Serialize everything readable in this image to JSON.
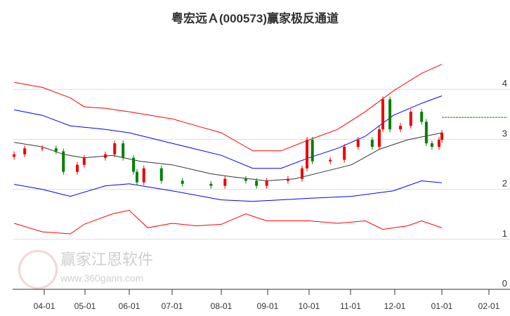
{
  "title": "粤宏远Ａ(000573)赢家极反通道",
  "watermark": {
    "name": "赢家江恩软件",
    "url": "www.360gann.com",
    "logo_text": "江恩赢家"
  },
  "colors": {
    "outer": "#ff0000",
    "inner": "#0000ff",
    "ma": "#333333",
    "up": "#ee0000",
    "down": "#008000",
    "target": "#008000"
  },
  "chart_data": {
    "type": "line",
    "title": "粤宏远Ａ(000573)赢家极反通道",
    "x_unit": "months since 04-01",
    "xticks": [
      "04-01",
      "05-01",
      "06-01",
      "07-01",
      "08-01",
      "09-01",
      "10-01",
      "11-01",
      "12-01",
      "01-01",
      "02-01"
    ],
    "yticks": [
      "0",
      "1",
      "2",
      "3",
      "4"
    ],
    "ylim": [
      0,
      4.6
    ],
    "grid": true,
    "series": [
      {
        "name": "upper-outer",
        "color": "outer",
        "points": [
          [
            -0.74,
            4.14
          ],
          [
            -0.05,
            4.04
          ],
          [
            0.64,
            3.83
          ],
          [
            0.98,
            3.65
          ],
          [
            1.46,
            3.62
          ],
          [
            2,
            3.55
          ],
          [
            3,
            3.41
          ],
          [
            3.5,
            3.27
          ],
          [
            4,
            3.13
          ],
          [
            4.68,
            2.77
          ],
          [
            5.32,
            2.77
          ],
          [
            6,
            2.99
          ],
          [
            6.69,
            3.2
          ],
          [
            7.33,
            3.55
          ],
          [
            7.97,
            3.97
          ],
          [
            8.57,
            4.32
          ],
          [
            9,
            4.5
          ]
        ]
      },
      {
        "name": "upper-inner",
        "color": "inner",
        "points": [
          [
            -0.74,
            3.59
          ],
          [
            -0.05,
            3.48
          ],
          [
            0.64,
            3.27
          ],
          [
            1.46,
            3.2
          ],
          [
            2,
            3.13
          ],
          [
            3,
            2.92
          ],
          [
            4,
            2.68
          ],
          [
            4.68,
            2.42
          ],
          [
            5.32,
            2.42
          ],
          [
            6,
            2.63
          ],
          [
            6.69,
            2.82
          ],
          [
            7.33,
            3.06
          ],
          [
            7.97,
            3.48
          ],
          [
            8.57,
            3.72
          ],
          [
            9,
            3.87
          ]
        ]
      },
      {
        "name": "lower-inner",
        "color": "inner",
        "points": [
          [
            -0.74,
            2.1
          ],
          [
            -0.05,
            2.0
          ],
          [
            0.64,
            1.86
          ],
          [
            1.46,
            2.07
          ],
          [
            2,
            2.11
          ],
          [
            3,
            1.97
          ],
          [
            4,
            1.79
          ],
          [
            4.68,
            1.76
          ],
          [
            5.32,
            1.79
          ],
          [
            6,
            1.82
          ],
          [
            7.02,
            1.86
          ],
          [
            7.97,
            1.97
          ],
          [
            8.57,
            2.17
          ],
          [
            9,
            2.13
          ]
        ]
      },
      {
        "name": "lower-outer",
        "color": "outer",
        "points": [
          [
            -0.74,
            1.32
          ],
          [
            -0.05,
            1.15
          ],
          [
            0.64,
            1.11
          ],
          [
            0.98,
            1.3
          ],
          [
            1.62,
            1.51
          ],
          [
            2,
            1.58
          ],
          [
            2.43,
            1.23
          ],
          [
            3,
            1.32
          ],
          [
            3.5,
            1.27
          ],
          [
            4,
            1.3
          ],
          [
            4.53,
            1.51
          ],
          [
            4.98,
            1.37
          ],
          [
            6,
            1.37
          ],
          [
            6.69,
            1.32
          ],
          [
            7.33,
            1.37
          ],
          [
            7.73,
            1.2
          ],
          [
            8.27,
            1.27
          ],
          [
            8.57,
            1.37
          ],
          [
            9,
            1.23
          ]
        ]
      },
      {
        "name": "moving-average",
        "color": "ma",
        "points": [
          [
            -0.74,
            2.94
          ],
          [
            -0.05,
            2.85
          ],
          [
            0.47,
            2.7
          ],
          [
            0.98,
            2.63
          ],
          [
            1.62,
            2.68
          ],
          [
            2.26,
            2.56
          ],
          [
            3,
            2.49
          ],
          [
            3.79,
            2.31
          ],
          [
            4.23,
            2.25
          ],
          [
            4.98,
            2.17
          ],
          [
            5.66,
            2.21
          ],
          [
            6.34,
            2.35
          ],
          [
            7.02,
            2.49
          ],
          [
            7.65,
            2.8
          ],
          [
            8.27,
            2.99
          ],
          [
            9,
            3.13
          ]
        ]
      }
    ],
    "candles_close": [
      [
        -0.74,
        2.7
      ],
      [
        -0.48,
        2.82
      ],
      [
        -0.05,
        2.82
      ],
      [
        0.29,
        2.76
      ],
      [
        0.47,
        2.35
      ],
      [
        0.81,
        2.49
      ],
      [
        0.98,
        2.63
      ],
      [
        1.46,
        2.7
      ],
      [
        1.67,
        2.92
      ],
      [
        1.86,
        2.63
      ],
      [
        2.1,
        2.35
      ],
      [
        2.18,
        2.14
      ],
      [
        2.34,
        2.42
      ],
      [
        2.75,
        2.17
      ],
      [
        3.21,
        2.11
      ],
      [
        3.79,
        2.07
      ],
      [
        4.08,
        2.21
      ],
      [
        4.53,
        2.17
      ],
      [
        4.76,
        2.07
      ],
      [
        4.98,
        2.17
      ],
      [
        5.49,
        2.21
      ],
      [
        5.83,
        2.42
      ],
      [
        5.95,
        2.99
      ],
      [
        6.08,
        2.56
      ],
      [
        6.51,
        2.59
      ],
      [
        6.85,
        2.85
      ],
      [
        7.17,
        2.99
      ],
      [
        7.49,
        2.85
      ],
      [
        7.65,
        3.2
      ],
      [
        7.73,
        3.8
      ],
      [
        7.89,
        3.2
      ],
      [
        8.12,
        3.27
      ],
      [
        8.34,
        3.55
      ],
      [
        8.57,
        3.35
      ],
      [
        8.67,
        2.92
      ],
      [
        8.79,
        2.85
      ],
      [
        8.94,
        2.99
      ],
      [
        9,
        3.13
      ]
    ],
    "target_level": 3.44
  }
}
